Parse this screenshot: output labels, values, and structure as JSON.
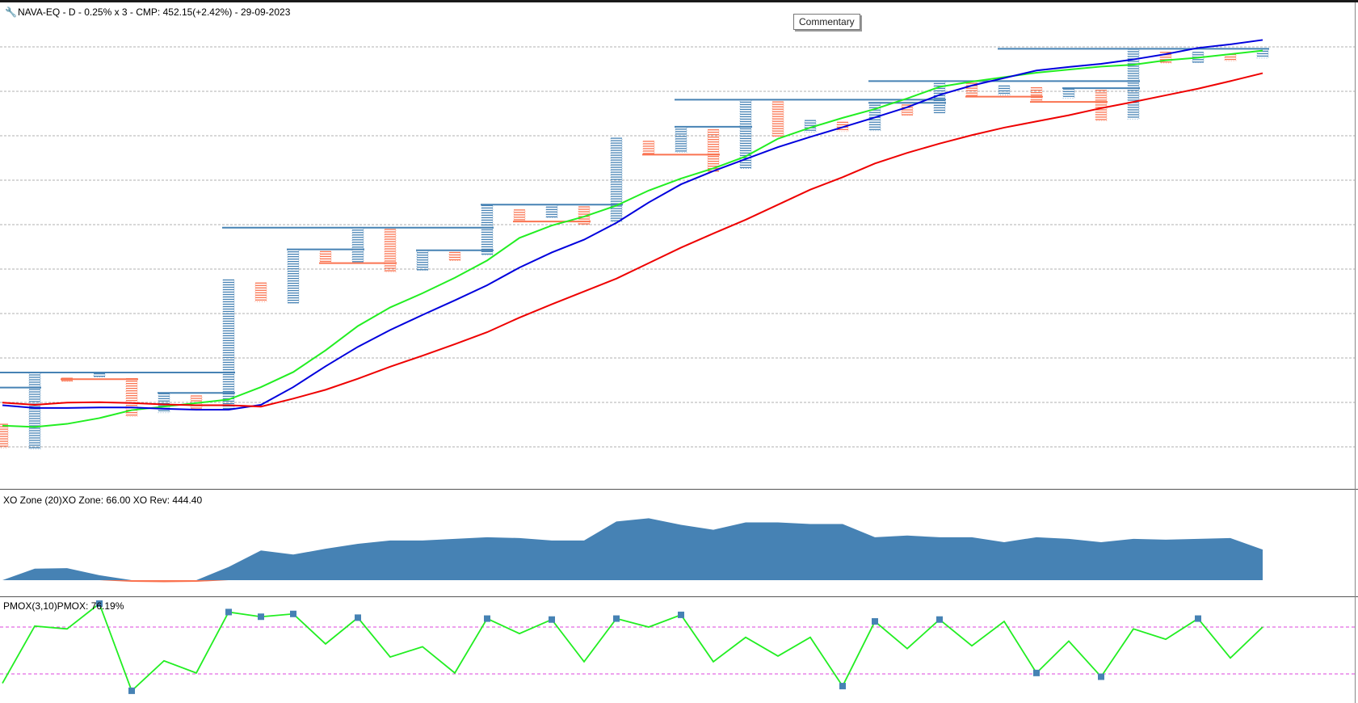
{
  "price_header": {
    "text": "NAVA-EQ - D - 0.25% x 3 - CMP: 452.15(+2.42%) - 29-09-2023",
    "icon": "wrench-icon"
  },
  "commentary_button": {
    "label": "Commentary"
  },
  "zone_header": {
    "text": "XO Zone (20)XO Zone: 66.00 XO Rev: 444.40"
  },
  "pmox_header": {
    "text": "PMOX(3,10)PMOX: 76.19%"
  },
  "colors": {
    "x_column": "#4682b4",
    "o_column": "#fa7350",
    "ma_fast": "#22ee22",
    "ma_mid": "#0000dd",
    "ma_slow": "#ee0000",
    "zone_positive": "#4682b4",
    "zone_negative": "#fa7350",
    "pmox_line": "#22ee22",
    "pmox_marker": "#4682b4",
    "pmox_levels": "#dd44dd",
    "grid": "#b0b0b0"
  },
  "chart_data": [
    {
      "type": "point-and-figure",
      "title": "NAVA-EQ - D - 0.25% x 3 - CMP: 452.15(+2.42%) - 29-09-2023",
      "box_size_pct": 0.25,
      "reversal": 3,
      "note": "Price scale not printed; values are relative price levels (0 = bottom, 100 = top of panel).",
      "ylim": [
        0,
        100
      ],
      "grid": true,
      "columns": [
        {
          "type": "O",
          "high": 10.2,
          "low": 4.9
        },
        {
          "type": "X",
          "high": 21.9,
          "low": 4.6
        },
        {
          "type": "O",
          "high": 20.6,
          "low": 19.9
        },
        {
          "type": "X",
          "high": 21.6,
          "low": 20.9
        },
        {
          "type": "O",
          "high": 20.5,
          "low": 12.0
        },
        {
          "type": "X",
          "high": 17.1,
          "low": 12.8
        },
        {
          "type": "O",
          "high": 16.6,
          "low": 13.5
        },
        {
          "type": "X",
          "high": 42.8,
          "low": 13.8
        },
        {
          "type": "O",
          "high": 42.1,
          "low": 37.9
        },
        {
          "type": "X",
          "high": 49.7,
          "low": 37.6
        },
        {
          "type": "O",
          "high": 49.2,
          "low": 46.6
        },
        {
          "type": "X",
          "high": 54.6,
          "low": 46.9
        },
        {
          "type": "O",
          "high": 54.2,
          "low": 44.6
        },
        {
          "type": "X",
          "high": 49.5,
          "low": 45.0
        },
        {
          "type": "O",
          "high": 49.0,
          "low": 47.2
        },
        {
          "type": "X",
          "high": 59.6,
          "low": 48.4
        },
        {
          "type": "O",
          "high": 58.6,
          "low": 56.0
        },
        {
          "type": "X",
          "high": 59.8,
          "low": 56.8
        },
        {
          "type": "O",
          "high": 59.3,
          "low": 55.3
        },
        {
          "type": "X",
          "high": 74.8,
          "low": 55.9
        },
        {
          "type": "O",
          "high": 74.1,
          "low": 71.1
        },
        {
          "type": "X",
          "high": 77.4,
          "low": 71.6
        },
        {
          "type": "O",
          "high": 76.7,
          "low": 67.3
        },
        {
          "type": "X",
          "high": 83.5,
          "low": 68.0
        },
        {
          "type": "O",
          "high": 83.0,
          "low": 75.2
        },
        {
          "type": "X",
          "high": 78.8,
          "low": 76.2
        },
        {
          "type": "O",
          "high": 78.4,
          "low": 76.3
        },
        {
          "type": "X",
          "high": 82.8,
          "low": 76.5
        },
        {
          "type": "O",
          "high": 82.3,
          "low": 80.0
        },
        {
          "type": "X",
          "high": 87.7,
          "low": 80.6
        },
        {
          "type": "O",
          "high": 87.2,
          "low": 84.2
        },
        {
          "type": "X",
          "high": 86.6,
          "low": 84.6
        },
        {
          "type": "O",
          "high": 86.2,
          "low": 83.0
        },
        {
          "type": "X",
          "high": 85.9,
          "low": 83.8
        },
        {
          "type": "O",
          "high": 85.6,
          "low": 78.8
        },
        {
          "type": "X",
          "high": 94.9,
          "low": 79.1
        },
        {
          "type": "O",
          "high": 94.2,
          "low": 91.8
        },
        {
          "type": "X",
          "high": 94.2,
          "low": 91.9
        },
        {
          "type": "O",
          "high": 93.7,
          "low": 92.3
        },
        {
          "type": "X",
          "high": 95.0,
          "low": 92.9
        }
      ],
      "resistance_lines": [
        {
          "level": 21.9,
          "from_col": 0,
          "to_col": 7
        },
        {
          "level": 17.3,
          "from_col": 5,
          "to_col": 7
        },
        {
          "level": 54.6,
          "from_col": 7,
          "to_col": 15
        },
        {
          "level": 49.7,
          "from_col": 9,
          "to_col": 11
        },
        {
          "level": 49.5,
          "from_col": 13,
          "to_col": 15
        },
        {
          "level": 59.8,
          "from_col": 15,
          "to_col": 19
        },
        {
          "level": 83.5,
          "from_col": 21,
          "to_col": 29
        },
        {
          "level": 77.4,
          "from_col": 21,
          "to_col": 23
        },
        {
          "level": 82.8,
          "from_col": 27,
          "to_col": 29
        },
        {
          "level": 87.7,
          "from_col": 27,
          "to_col": 35
        },
        {
          "level": 86.1,
          "from_col": 33,
          "to_col": 35
        },
        {
          "level": 95.0,
          "from_col": 31,
          "to_col": 39
        },
        {
          "level": 18.5,
          "from_col": 0,
          "to_col": 1
        }
      ],
      "support_lines": [
        {
          "level": 20.4,
          "from_col": 2,
          "to_col": 4
        },
        {
          "level": 46.6,
          "from_col": 10,
          "to_col": 12
        },
        {
          "level": 56.0,
          "from_col": 16,
          "to_col": 18
        },
        {
          "level": 71.1,
          "from_col": 20,
          "to_col": 22
        },
        {
          "level": 84.2,
          "from_col": 30,
          "to_col": 32
        },
        {
          "level": 83.0,
          "from_col": 32,
          "to_col": 34
        }
      ],
      "moving_averages": [
        {
          "color": "ma_fast",
          "values": [
            9.9,
            9.6,
            10.3,
            11.6,
            13.4,
            14.2,
            15.0,
            15.8,
            18.6,
            22.0,
            26.9,
            32.4,
            36.6,
            39.8,
            43.3,
            47.2,
            52.3,
            55.1,
            57.1,
            59.6,
            63.0,
            65.7,
            68.0,
            70.7,
            74.7,
            77.2,
            79.4,
            81.4,
            83.8,
            86.4,
            87.6,
            88.6,
            89.6,
            90.3,
            91.0,
            91.4,
            92.4,
            93.0,
            93.8,
            94.6
          ]
        },
        {
          "color": "ma_mid",
          "values": [
            14.5,
            13.9,
            13.9,
            14.0,
            14.0,
            13.7,
            13.5,
            13.5,
            14.6,
            18.6,
            23.3,
            27.7,
            31.5,
            34.9,
            38.2,
            41.6,
            45.6,
            49.0,
            51.9,
            55.7,
            60.3,
            64.4,
            67.4,
            70.1,
            72.8,
            75.1,
            77.3,
            79.5,
            81.8,
            84.6,
            86.7,
            88.4,
            90.1,
            90.9,
            91.6,
            92.6,
            93.8,
            95.2,
            96.0,
            97.0
          ]
        },
        {
          "color": "ma_slow",
          "values": [
            15.1,
            14.6,
            15.1,
            15.2,
            15.0,
            14.7,
            14.5,
            14.5,
            14.2,
            16.0,
            18.0,
            20.5,
            23.2,
            25.7,
            28.3,
            31.0,
            34.3,
            37.3,
            40.2,
            43.1,
            46.6,
            50.1,
            53.3,
            56.4,
            59.8,
            63.2,
            66.0,
            69.1,
            71.5,
            73.6,
            75.5,
            77.2,
            78.6,
            80.0,
            81.6,
            83.0,
            84.5,
            86.0,
            87.7,
            89.5
          ]
        }
      ]
    },
    {
      "type": "area",
      "title": "XO Zone (20)XO Zone: 66.00 XO Rev: 444.40",
      "xo_zone": 66.0,
      "xo_rev": 444.4,
      "note": "No value axis printed; values are relative zone levels with 0 baseline.",
      "ylim": [
        -10,
        90
      ],
      "values": [
        0,
        14,
        14.5,
        6,
        -2,
        -2.5,
        -2,
        16,
        36,
        31,
        38,
        44,
        48,
        48,
        50,
        52,
        51,
        48,
        48,
        71,
        75,
        67,
        61,
        70,
        70,
        68,
        68,
        52,
        54,
        52,
        52,
        46,
        52,
        50,
        46,
        50,
        49,
        50,
        51,
        37
      ]
    },
    {
      "type": "line",
      "title": "PMOX(3,10)PMOX: 76.19%",
      "pmox_percent": 76.19,
      "upper_level": 75,
      "lower_level": 25,
      "ylim": [
        0,
        100
      ],
      "values": [
        15,
        76,
        73,
        100,
        7,
        39,
        26,
        91,
        86,
        89,
        57,
        85,
        43,
        54,
        26,
        84,
        68,
        83,
        38,
        84,
        75,
        88,
        38,
        64,
        44,
        64,
        12,
        81,
        52,
        83,
        55,
        81,
        26,
        60,
        22,
        73,
        62,
        84,
        42,
        75
      ],
      "markers": [
        3,
        4,
        7,
        8,
        9,
        11,
        15,
        17,
        19,
        21,
        26,
        27,
        29,
        32,
        34,
        37
      ]
    }
  ]
}
